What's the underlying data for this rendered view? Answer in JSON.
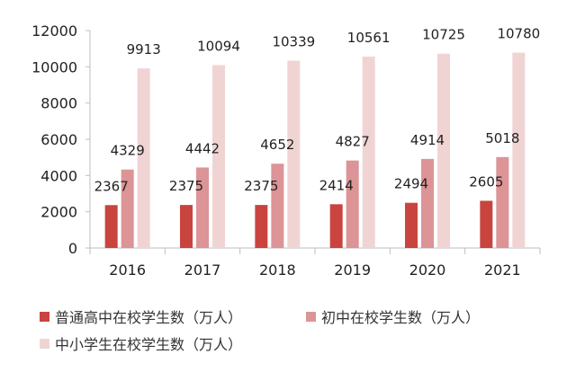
{
  "chart_data": {
    "type": "bar",
    "categories": [
      "2016",
      "2017",
      "2018",
      "2019",
      "2020",
      "2021"
    ],
    "series": [
      {
        "name": "普通高中在校学生数（万人）",
        "values": [
          2367,
          2375,
          2375,
          2414,
          2494,
          2605
        ],
        "color": "#c9443f"
      },
      {
        "name": "初中在校学生数（万人）",
        "values": [
          4329,
          4442,
          4652,
          4827,
          4914,
          5018
        ],
        "color": "#dc9496"
      },
      {
        "name": "中小学生在校学生数（万人）",
        "values": [
          9913,
          10094,
          10339,
          10561,
          10725,
          10780
        ],
        "color": "#f0d4d3"
      }
    ],
    "yticks": [
      "0",
      "2000",
      "4000",
      "6000",
      "8000",
      "10000",
      "12000"
    ],
    "ylim": [
      0,
      12000
    ],
    "grid": false,
    "legend_position": "bottom"
  }
}
